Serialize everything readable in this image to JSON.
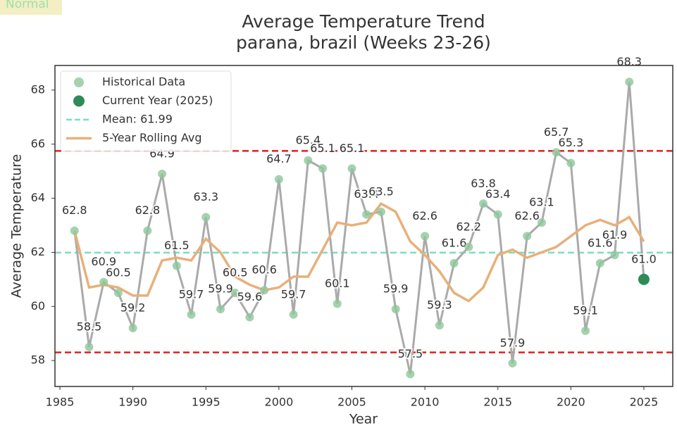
{
  "chart_data": {
    "type": "line",
    "badge": "Normal",
    "title": "Average Temperature Trend",
    "subtitle": "parana, brazil (Weeks 23-26)",
    "xlabel": "Year",
    "ylabel": "Average Temperature",
    "xlim": [
      1984.66,
      2026.98
    ],
    "ylim": [
      57.04,
      68.91
    ],
    "xticks": [
      1985,
      1990,
      1995,
      2000,
      2005,
      2010,
      2015,
      2020,
      2025
    ],
    "yticks": [
      58,
      60,
      62,
      64,
      66,
      68
    ],
    "legend": "upper left",
    "series": [
      {
        "name": "Historical Data",
        "color": "#8fc79a",
        "x": [
          1986,
          1987,
          1988,
          1989,
          1990,
          1991,
          1992,
          1993,
          1994,
          1995,
          1996,
          1997,
          1998,
          1999,
          2000,
          2001,
          2002,
          2003,
          2004,
          2005,
          2006,
          2007,
          2008,
          2009,
          2010,
          2011,
          2012,
          2013,
          2014,
          2015,
          2016,
          2017,
          2018,
          2019,
          2020,
          2021,
          2022,
          2023,
          2024
        ],
        "values": [
          62.8,
          58.5,
          60.9,
          60.5,
          59.2,
          62.8,
          64.9,
          61.5,
          59.7,
          63.3,
          59.9,
          60.5,
          59.6,
          60.6,
          64.7,
          59.7,
          65.4,
          65.1,
          60.1,
          65.1,
          63.4,
          63.5,
          59.9,
          57.5,
          62.6,
          59.3,
          61.6,
          62.2,
          63.8,
          63.4,
          57.9,
          62.6,
          63.1,
          65.7,
          65.3,
          59.1,
          61.6,
          61.9,
          68.3
        ]
      },
      {
        "name": "Current Year (2025)",
        "color": "#2e8b57",
        "x": [
          2025
        ],
        "values": [
          61
        ],
        "value_labels": [
          "61.0"
        ]
      },
      {
        "name": "5-Year Rolling Avg",
        "color": "#e8b07a",
        "x": [
          1986,
          1987,
          1988,
          1989,
          1990,
          1991,
          1992,
          1993,
          1994,
          1995,
          1996,
          1997,
          1998,
          1999,
          2000,
          2001,
          2002,
          2003,
          2004,
          2005,
          2006,
          2007,
          2008,
          2009,
          2010,
          2011,
          2012,
          2013,
          2014,
          2015,
          2016,
          2017,
          2018,
          2019,
          2020,
          2021,
          2022,
          2023,
          2024,
          2025
        ],
        "values": [
          62.8,
          60.7,
          60.8,
          60.7,
          60.4,
          60.4,
          61.7,
          61.8,
          61.7,
          62.5,
          62.0,
          61.1,
          60.8,
          60.6,
          60.7,
          61.1,
          61.1,
          62.1,
          63.1,
          63.0,
          63.1,
          63.8,
          63.5,
          62.4,
          61.9,
          61.3,
          60.5,
          60.2,
          60.7,
          61.9,
          62.1,
          61.8,
          62.0,
          62.2,
          62.6,
          63.0,
          63.2,
          63.0,
          63.3,
          62.4
        ]
      }
    ],
    "connector_color": "#aaaaaa",
    "mean": {
      "name": "Mean: 61.99",
      "value": 61.99,
      "color": "#7fdcc0"
    },
    "reference_lines": [
      {
        "value": 65.75,
        "color": "#e02020"
      },
      {
        "value": 58.3,
        "color": "#e02020"
      }
    ]
  }
}
